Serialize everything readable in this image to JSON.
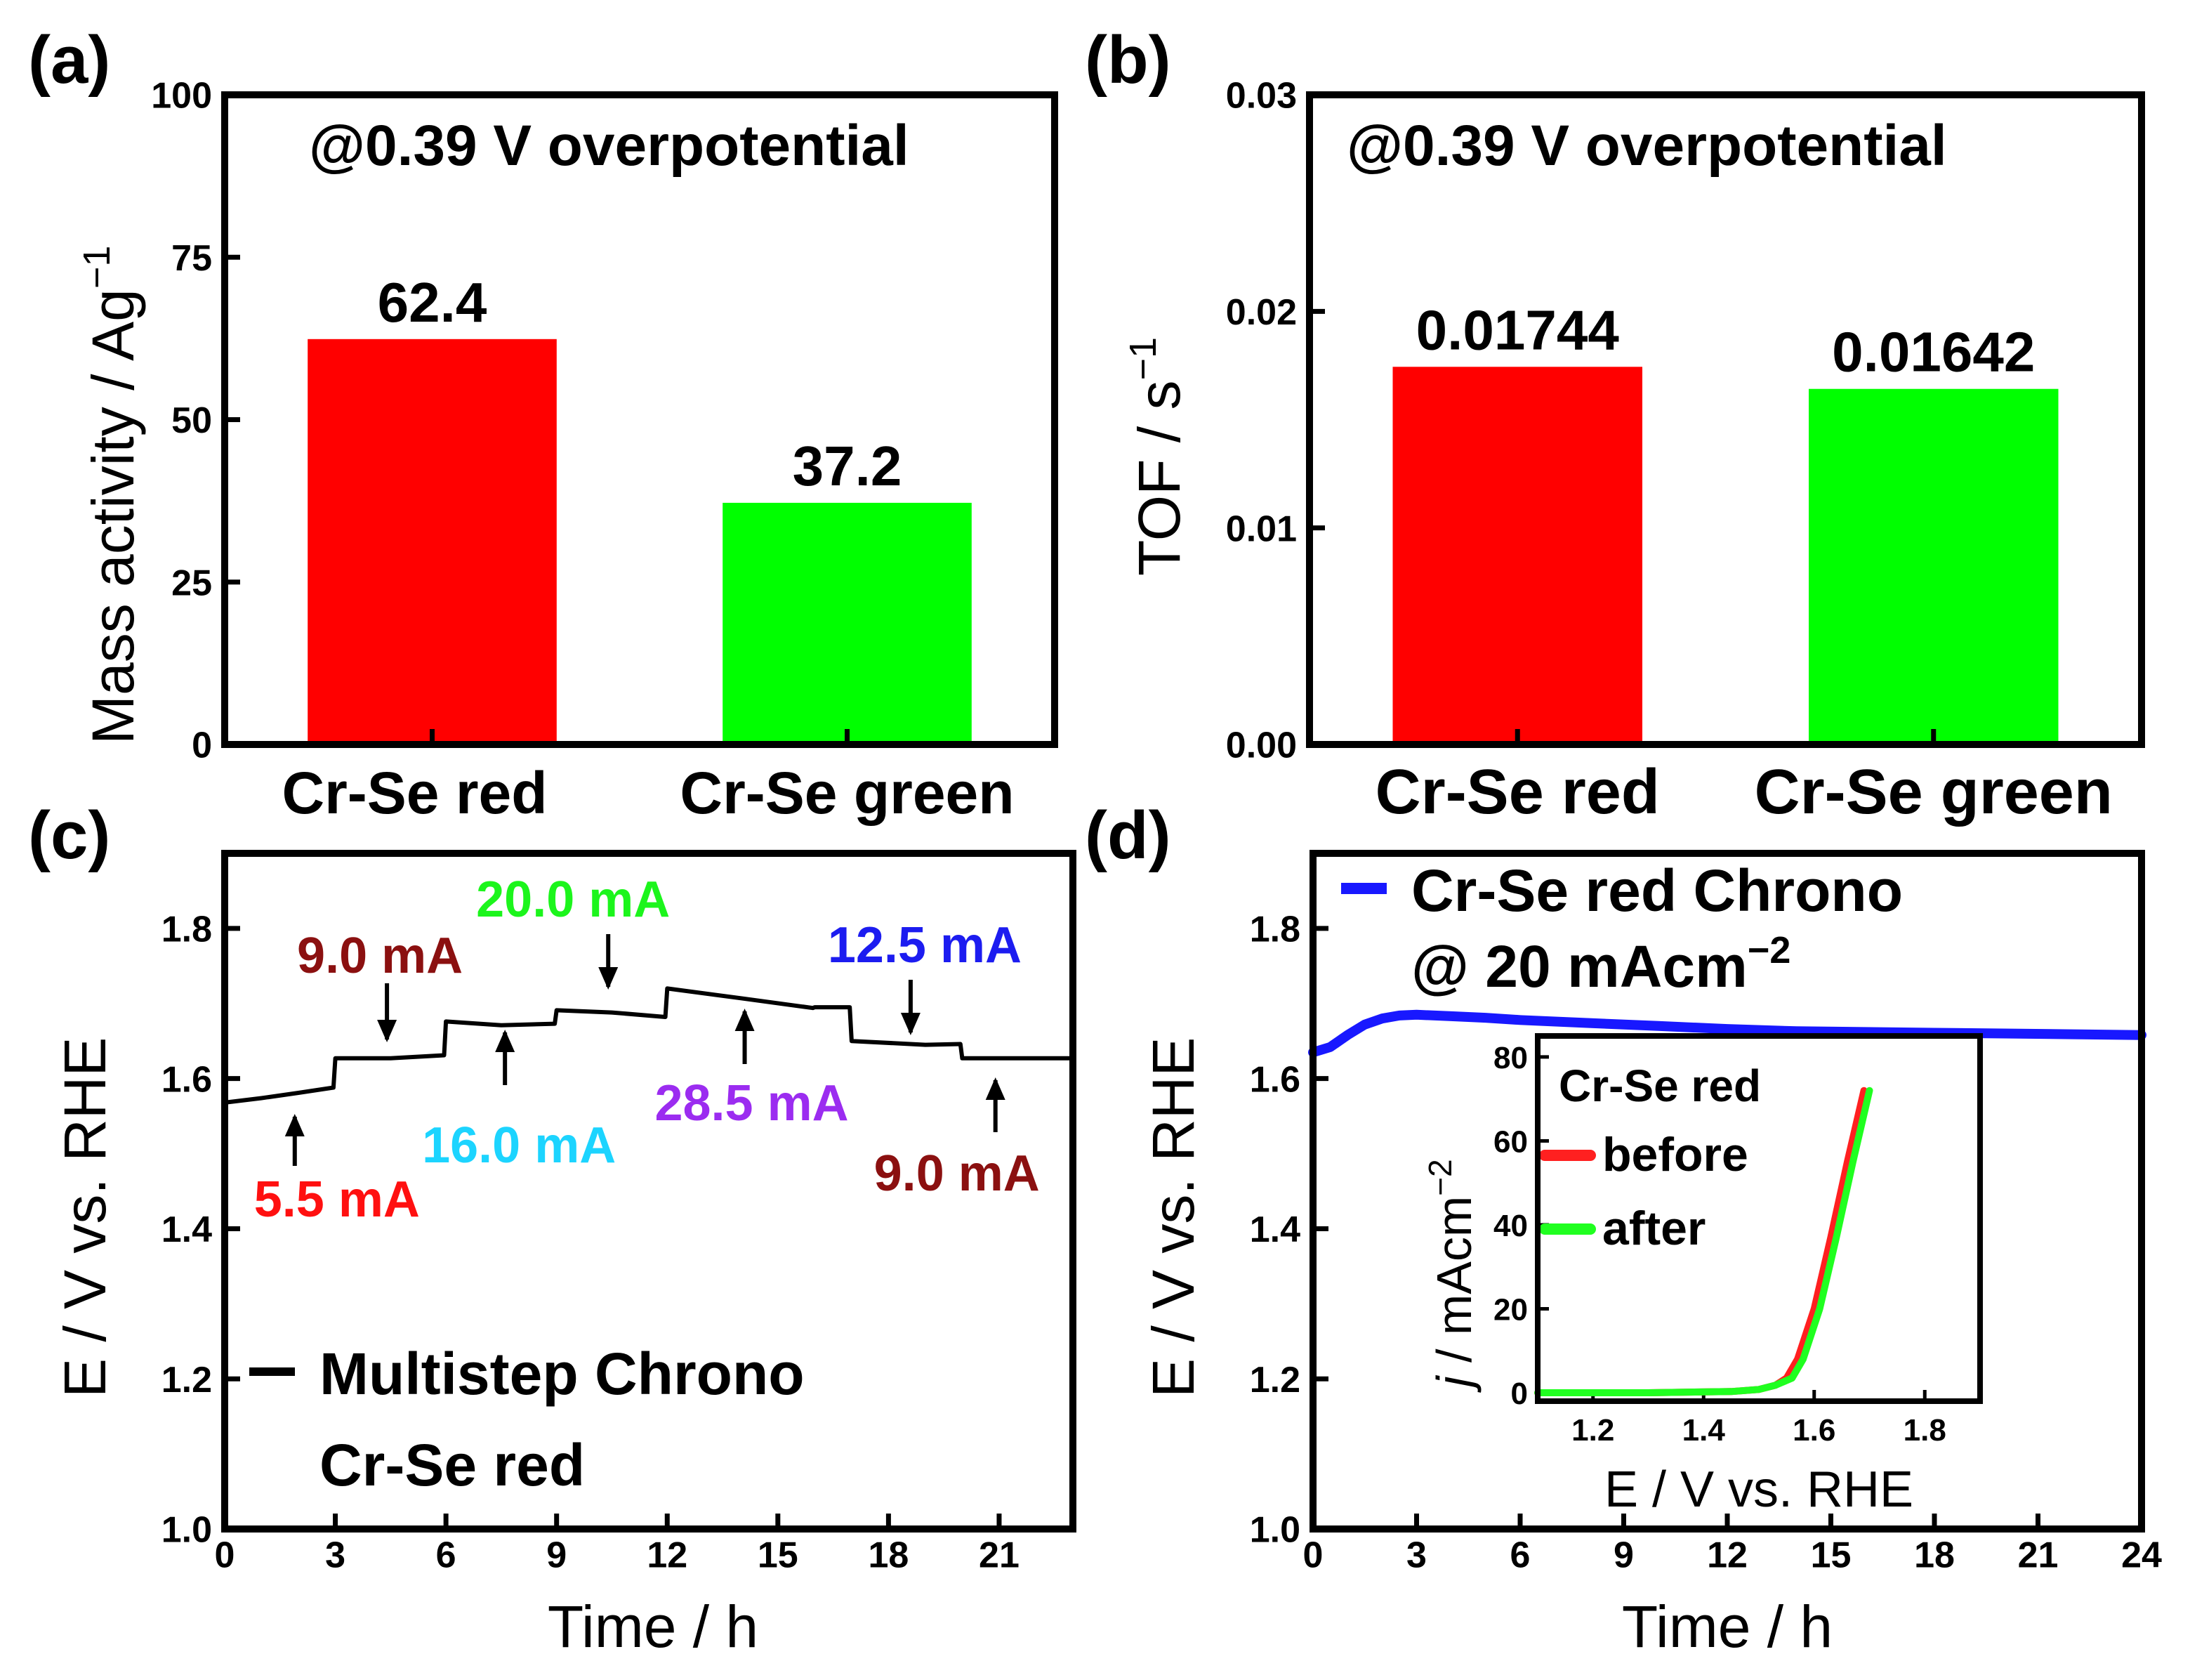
{
  "chart_data": [
    {
      "panel": "(a)",
      "type": "bar",
      "annotation": "@0.39 V overpotential",
      "ylabel": "Mass activity / Ag",
      "ylabel_sup": "−1",
      "ylim": [
        0,
        100
      ],
      "yticks": [
        0,
        25,
        50,
        75,
        100
      ],
      "categories": [
        "Cr-Se red",
        "Cr-Se green"
      ],
      "values": [
        62.4,
        37.2
      ],
      "value_labels": [
        "62.4",
        "37.2"
      ],
      "colors": [
        "#ff0000",
        "#00ff00"
      ]
    },
    {
      "panel": "(b)",
      "type": "bar",
      "annotation": "@0.39 V overpotential",
      "ylabel": "TOF / s",
      "ylabel_sup": "−1",
      "ylim": [
        0,
        0.03
      ],
      "yticks": [
        "0.00",
        "0.01",
        "0.02",
        "0.03"
      ],
      "categories": [
        "Cr-Se red",
        "Cr-Se green"
      ],
      "values": [
        0.01744,
        0.01642
      ],
      "value_labels": [
        "0.01744",
        "0.01642"
      ],
      "colors": [
        "#ff0000",
        "#00ff00"
      ]
    },
    {
      "panel": "(c)",
      "type": "line",
      "xlabel": "Time / h",
      "ylabel": "E / V vs. RHE",
      "xlim": [
        0,
        23
      ],
      "ylim": [
        1.0,
        1.9
      ],
      "xticks": [
        0,
        3,
        6,
        9,
        12,
        15,
        18,
        21
      ],
      "yticks": [
        "1.0",
        "1.2",
        "1.4",
        "1.6",
        "1.8"
      ],
      "legend": [
        "Multistep Chrono",
        "Cr-Se red"
      ],
      "series": [
        {
          "color": "#000000",
          "x": [
            0,
            1,
            2,
            2.95,
            3.0,
            4.5,
            5.95,
            6.0,
            7.5,
            8.95,
            9.0,
            10.5,
            11.95,
            12.0,
            14,
            15.95,
            16.0,
            16.95,
            17.0,
            19.0,
            19.95,
            20.0,
            21.5,
            23.0
          ],
          "y": [
            1.568,
            1.574,
            1.581,
            1.588,
            1.627,
            1.627,
            1.631,
            1.676,
            1.671,
            1.673,
            1.691,
            1.688,
            1.682,
            1.72,
            1.707,
            1.694,
            1.695,
            1.695,
            1.65,
            1.645,
            1.646,
            1.627,
            1.627,
            1.627
          ]
        }
      ],
      "annotations": [
        {
          "label": "5.5 mA",
          "color": "#ff1010",
          "arrow_x": 1.9,
          "arrow_dir": "up"
        },
        {
          "label": "9.0 mA",
          "color": "#8b1010",
          "arrow_x": 4.4,
          "arrow_dir": "down"
        },
        {
          "label": "16.0 mA",
          "color": "#1cd4ff",
          "arrow_x": 7.6,
          "arrow_dir": "up"
        },
        {
          "label": "20.0 mA",
          "color": "#1cf51c",
          "arrow_x": 10.4,
          "arrow_dir": "down"
        },
        {
          "label": "28.5 mA",
          "color": "#9b2cf0",
          "arrow_x": 14.1,
          "arrow_dir": "up"
        },
        {
          "label": "12.5 mA",
          "color": "#1c1cf0",
          "arrow_x": 18.6,
          "arrow_dir": "down"
        },
        {
          "label": "9.0 mA",
          "color": "#8b1010",
          "arrow_x": 20.9,
          "arrow_dir": "up"
        }
      ]
    },
    {
      "panel": "(d)",
      "type": "line",
      "xlabel": "Time / h",
      "ylabel": "E / V vs. RHE",
      "xlim": [
        0,
        24
      ],
      "ylim": [
        1.0,
        1.9
      ],
      "xticks": [
        0,
        3,
        6,
        9,
        12,
        15,
        18,
        21,
        24
      ],
      "yticks": [
        "1.0",
        "1.2",
        "1.4",
        "1.6",
        "1.8"
      ],
      "legend": [
        "Cr-Se red Chrono",
        "@ 20 mAcm",
        "−2"
      ],
      "series": [
        {
          "name": "Cr-Se red Chrono",
          "color": "#1818ff",
          "x": [
            0,
            0.5,
            1,
            1.5,
            2,
            2.5,
            3,
            4,
            5,
            6,
            8,
            10,
            12,
            14,
            16,
            18,
            20,
            22,
            24
          ],
          "y": [
            1.635,
            1.642,
            1.658,
            1.672,
            1.68,
            1.684,
            1.685,
            1.683,
            1.681,
            1.678,
            1.674,
            1.67,
            1.666,
            1.663,
            1.662,
            1.661,
            1.66,
            1.659,
            1.658
          ]
        }
      ],
      "inset": {
        "type": "line",
        "title": "Cr-Se red",
        "xlabel": "E / V vs. RHE",
        "ylabel": "j / mAcm",
        "ylabel_sup": "−2",
        "xlim": [
          1.1,
          1.9
        ],
        "ylim": [
          -2,
          85
        ],
        "xticks": [
          "1.2",
          "1.4",
          "1.6",
          "1.8"
        ],
        "yticks": [
          "0",
          "20",
          "40",
          "60",
          "80"
        ],
        "series": [
          {
            "name": "before",
            "color": "#ff2020",
            "x": [
              1.1,
              1.3,
              1.45,
              1.5,
              1.53,
              1.55,
              1.57,
              1.6,
              1.63,
              1.66,
              1.69
            ],
            "y": [
              0,
              0,
              0.3,
              0.8,
              1.8,
              3.5,
              8,
              20,
              37,
              55,
              72
            ]
          },
          {
            "name": "after",
            "color": "#20ff20",
            "x": [
              1.1,
              1.3,
              1.45,
              1.5,
              1.53,
              1.56,
              1.58,
              1.61,
              1.64,
              1.67,
              1.7
            ],
            "y": [
              0,
              0,
              0.3,
              0.8,
              1.8,
              3.5,
              8,
              20,
              37,
              55,
              72
            ]
          }
        ]
      }
    }
  ]
}
